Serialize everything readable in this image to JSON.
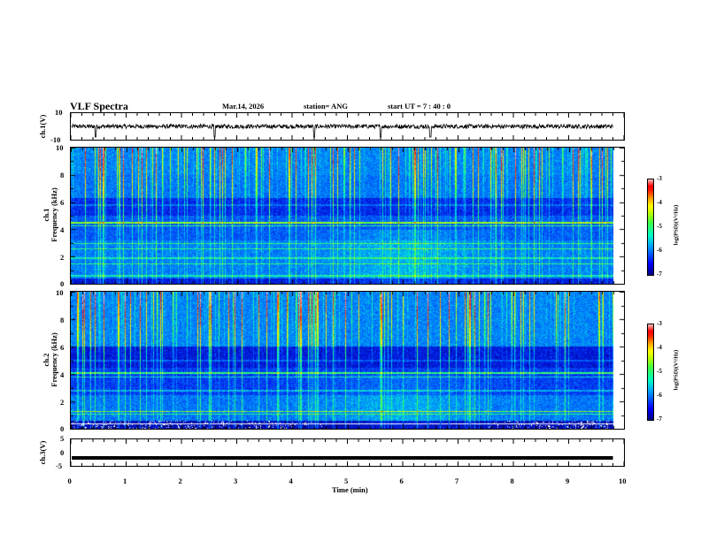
{
  "header": {
    "title": "VLF Spectra",
    "date": "Mar.14, 2026",
    "station": "station= ANG",
    "start": "start  UT =   7 : 40 : 0"
  },
  "chart_data": [
    {
      "type": "line",
      "name": "ch1-waveform",
      "ylabel": "ch.1(V)",
      "ylim": [
        -10,
        10
      ],
      "yticks": [
        "10",
        "-10"
      ],
      "baseline": 0,
      "spikes_min": [
        0.45,
        2.6,
        4.4,
        5.6,
        6.5
      ]
    },
    {
      "type": "heatmap",
      "name": "ch1-spectrogram",
      "ylabel": "ch.1\nFrequency (kHz)",
      "ylabel_lines": [
        "ch.1",
        "Frequency  (kHz)"
      ],
      "ylim": [
        0,
        10
      ],
      "yticks": [
        "0",
        "2",
        "4",
        "6",
        "8",
        "10"
      ],
      "colorbar": {
        "label": "log(PSD)(V²/Hz)",
        "ticks": [
          "-3",
          "-4",
          "-5",
          "-6",
          "-7"
        ],
        "range": [
          -7,
          -3
        ]
      }
    },
    {
      "type": "heatmap",
      "name": "ch2-spectrogram",
      "ylabel": "ch.2\nFrequency (kHz)",
      "ylabel_lines": [
        "ch.2",
        "Frequency  (kHz)"
      ],
      "ylim": [
        0,
        10
      ],
      "yticks": [
        "0",
        "2",
        "4",
        "6",
        "8",
        "10"
      ],
      "colorbar": {
        "label": "log(PSD)(V²/Hz)",
        "ticks": [
          "-3",
          "-4",
          "-5",
          "-6",
          "-7"
        ],
        "range": [
          -7,
          -3
        ]
      }
    },
    {
      "type": "line",
      "name": "ch3-waveform",
      "ylabel": "ch.3(V)",
      "ylim": [
        -5,
        5
      ],
      "yticks": [
        "5",
        "0",
        "-5"
      ],
      "baseline": -2
    }
  ],
  "xaxis": {
    "label": "Time  (min)",
    "range": [
      0,
      10
    ],
    "ticks": [
      "0",
      "1",
      "2",
      "3",
      "4",
      "5",
      "6",
      "7",
      "8",
      "9",
      "10"
    ],
    "data_end": 9.8
  }
}
